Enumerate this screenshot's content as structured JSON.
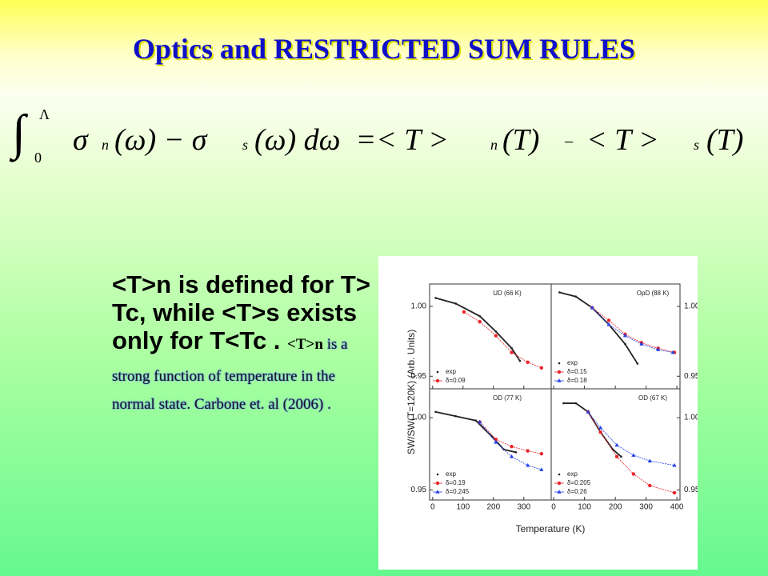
{
  "title": "Optics and RESTRICTED SUM RULES",
  "equation": {
    "tokens": [
      "∫",
      "Λ",
      "0",
      "σ",
      "n",
      "(ω) − σ",
      "s",
      "(ω) dω  =< T >",
      "n",
      "(T)",
      "−",
      "< T >",
      "s",
      "(T)"
    ]
  },
  "bullet": {
    "main": "<T>n is defined for T> Tc, while <T>s exists only for T<Tc .",
    "tag": "<T>n",
    "note": " is a strong function of temperature in the normal state.  Carbone et. al (2006) ."
  },
  "figure": {
    "x_label": "Temperature (K)",
    "y_label": "SW/SW(T=120K)  (Arb. Units)"
  },
  "chart_data": [
    {
      "type": "line",
      "title": "UD (66 K)",
      "xlim": [
        -10,
        390
      ],
      "ylim": [
        0.941,
        1.016
      ],
      "xticks": [
        0,
        100,
        200,
        300
      ],
      "yticks": [
        {
          "value": 0.95,
          "label": "0.95"
        },
        {
          "value": 1,
          "label": "1.00"
        }
      ],
      "series": [
        {
          "name": "exp",
          "color": "#222222",
          "marker": "dot",
          "x": [
            10,
            76,
            155,
            208,
            260,
            287
          ],
          "values": [
            1.006,
            1.002,
            0.993,
            0.982,
            0.97,
            0.961
          ]
        },
        {
          "name": "δ=0.09",
          "color": "#e8242a",
          "marker": "circle",
          "x": [
            103,
            155,
            208,
            260,
            313,
            358
          ],
          "values": [
            0.996,
            0.989,
            0.979,
            0.967,
            0.96,
            0.956
          ]
        }
      ]
    },
    {
      "type": "line",
      "title": "OpD (88 K)",
      "xlim": [
        -8,
        410
      ],
      "ylim": [
        0.941,
        1.016
      ],
      "xticks": [
        0,
        100,
        200,
        300,
        400
      ],
      "yticks": [
        {
          "value": 0.95,
          "label": "0.95"
        },
        {
          "value": 1,
          "label": "1.00"
        }
      ],
      "series": [
        {
          "name": "exp",
          "color": "#222222",
          "marker": "dot",
          "x": [
            19,
            72,
            125,
            179,
            232,
            272
          ],
          "values": [
            1.01,
            1.007,
            0.999,
            0.987,
            0.973,
            0.959
          ]
        },
        {
          "name": "δ=0.15",
          "color": "#e8242a",
          "marker": "circle",
          "x": [
            125,
            179,
            232,
            285,
            339,
            392
          ],
          "values": [
            0.999,
            0.99,
            0.98,
            0.974,
            0.97,
            0.967
          ]
        },
        {
          "name": "δ=0.18",
          "color": "#2440e8",
          "marker": "triangle",
          "x": [
            125,
            179,
            232,
            285,
            339,
            387
          ],
          "values": [
            0.999,
            0.987,
            0.979,
            0.973,
            0.969,
            0.967
          ]
        }
      ]
    },
    {
      "type": "line",
      "title": "OD (77 K)",
      "xlim": [
        -10,
        390
      ],
      "ylim": [
        0.943,
        1.02
      ],
      "xticks": [
        0,
        100,
        200,
        300
      ],
      "yticks": [
        {
          "value": 0.95,
          "label": "0.95"
        },
        {
          "value": 1,
          "label": "1.00"
        }
      ],
      "series": [
        {
          "name": "exp",
          "color": "#222222",
          "marker": "dot",
          "x": [
            10,
            76,
            142,
            195,
            234,
            274
          ],
          "values": [
            1.004,
            1.001,
            0.998,
            0.987,
            0.978,
            0.976
          ]
        },
        {
          "name": "δ=0.19",
          "color": "#e8242a",
          "marker": "circle",
          "x": [
            155,
            208,
            260,
            313,
            358
          ],
          "values": [
            0.997,
            0.985,
            0.98,
            0.977,
            0.975
          ]
        },
        {
          "name": "δ=0.245",
          "color": "#2440e8",
          "marker": "triangle",
          "x": [
            155,
            208,
            260,
            313,
            358
          ],
          "values": [
            0.997,
            0.983,
            0.973,
            0.967,
            0.964
          ]
        }
      ]
    },
    {
      "type": "line",
      "title": "OD (67 K)",
      "xlim": [
        -8,
        410
      ],
      "ylim": [
        0.943,
        1.02
      ],
      "xticks": [
        0,
        100,
        200,
        300,
        400
      ],
      "yticks": [
        {
          "value": 0.95,
          "label": "0.95"
        },
        {
          "value": 1,
          "label": "1.00"
        }
      ],
      "series": [
        {
          "name": "exp",
          "color": "#222222",
          "marker": "dot",
          "x": [
            32,
            72,
            112,
            152,
            192,
            219
          ],
          "values": [
            1.01,
            1.01,
            1.004,
            0.99,
            0.978,
            0.973
          ]
        },
        {
          "name": "δ=0.205",
          "color": "#e8242a",
          "marker": "circle",
          "x": [
            112,
            152,
            205,
            259,
            312,
            392
          ],
          "values": [
            1.004,
            0.99,
            0.973,
            0.961,
            0.953,
            0.948
          ]
        },
        {
          "name": "δ=0.26",
          "color": "#2440e8",
          "marker": "triangle",
          "x": [
            112,
            152,
            205,
            259,
            312,
            392
          ],
          "values": [
            1.004,
            0.993,
            0.981,
            0.974,
            0.97,
            0.967
          ]
        }
      ]
    }
  ]
}
